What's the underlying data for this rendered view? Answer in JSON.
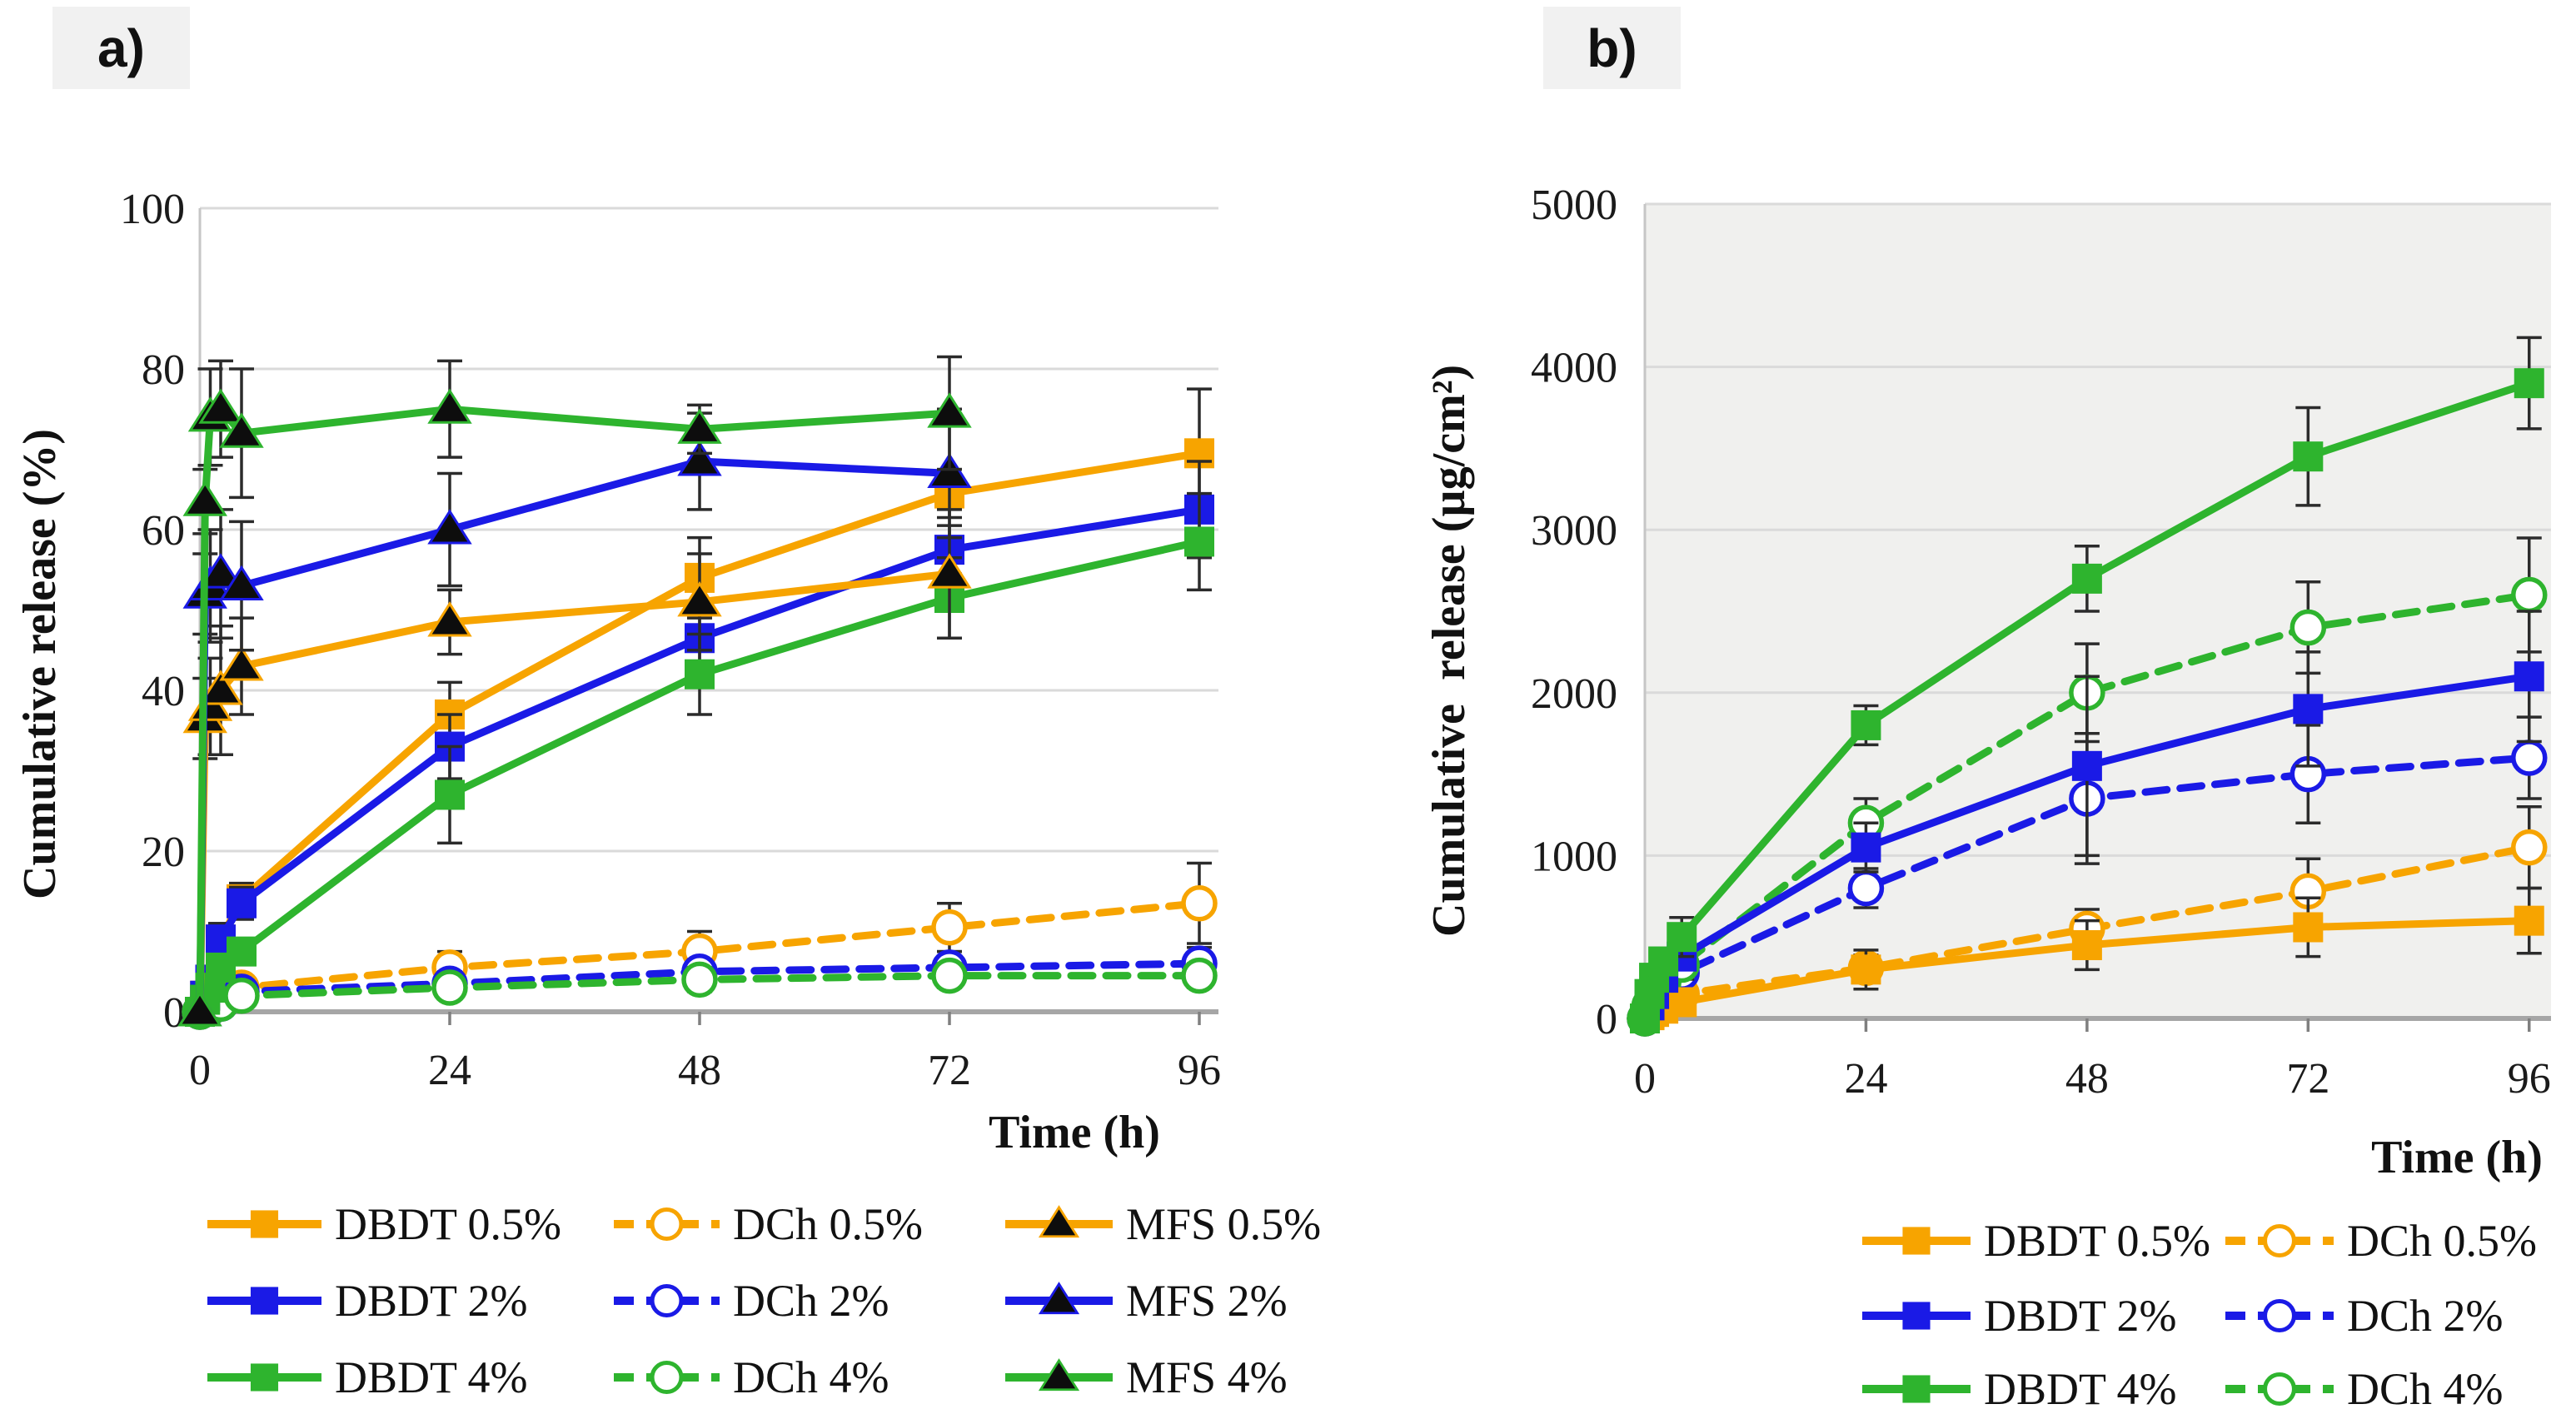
{
  "figure": {
    "panel_a_label": "a)",
    "panel_b_label": "b)"
  },
  "colors": {
    "orange": "#F7A400",
    "blue": "#1A1AE6",
    "green": "#2EB42E",
    "black_marker": "#0D0D0D",
    "grid": "#DADADA",
    "axis_line": "#A6A6A6",
    "minor_axis": "#C6C6C6",
    "error_bar": "#2B2B2B",
    "panel_label_bg": "#F1F1F1",
    "plot_bg_b": "#F0F0EE",
    "text": "#1A1A1A"
  },
  "chart_data": [
    {
      "type": "line",
      "panel": "a",
      "title": "",
      "xlabel": "Time (h)",
      "ylabel": "Cumulative release (%)",
      "xlim": [
        0,
        98
      ],
      "ylim": [
        0,
        100
      ],
      "xticks": [
        0,
        24,
        48,
        72,
        96
      ],
      "yticks": [
        0,
        20,
        40,
        60,
        80,
        100
      ],
      "grid": true,
      "plot_bg": "#FFFFFF",
      "x": [
        0,
        0.5,
        1,
        2,
        4,
        24,
        48,
        72,
        96
      ],
      "series": [
        {
          "name": "DCh 0.5%",
          "color": "#F7A400",
          "line": "dashed",
          "marker": "circle-open",
          "values": [
            0,
            0.5,
            1,
            1.5,
            3,
            5.5,
            7.5,
            10.5,
            13.5
          ],
          "errors": [
            0,
            0.3,
            0.5,
            0.5,
            1,
            2,
            2.5,
            3,
            5
          ]
        },
        {
          "name": "DCh 2%",
          "color": "#1A1AE6",
          "line": "dashed",
          "marker": "circle-open",
          "values": [
            0,
            0.3,
            0.5,
            1,
            2.5,
            3.5,
            5,
            5.5,
            6
          ],
          "errors": [
            0,
            0.3,
            0.3,
            0.5,
            1,
            1.5,
            1.5,
            2,
            2
          ]
        },
        {
          "name": "DCh 4%",
          "color": "#2EB42E",
          "line": "dashed",
          "marker": "circle-open",
          "values": [
            0,
            0.3,
            0.5,
            1,
            2,
            3,
            4,
            4.5,
            4.5
          ],
          "errors": [
            0,
            0.3,
            0.3,
            0.5,
            1,
            1,
            1.5,
            1.5,
            1.5
          ]
        },
        {
          "name": "DBDT 0.5%",
          "color": "#F7A400",
          "line": "solid",
          "marker": "square",
          "values": [
            0,
            2,
            4,
            9,
            14,
            37,
            54,
            64.5,
            69.5
          ],
          "errors": [
            0,
            1,
            1,
            2,
            2,
            4,
            5,
            3,
            8
          ]
        },
        {
          "name": "DBDT 2%",
          "color": "#1A1AE6",
          "line": "solid",
          "marker": "square",
          "values": [
            0,
            2,
            4,
            9,
            13.5,
            33,
            46.5,
            57.5,
            62.5
          ],
          "errors": [
            0,
            1,
            1,
            2,
            2,
            4,
            4,
            3,
            6
          ]
        },
        {
          "name": "DBDT 4%",
          "color": "#2EB42E",
          "line": "solid",
          "marker": "square",
          "values": [
            0,
            1.5,
            3,
            5.5,
            7.5,
            27,
            42,
            51.5,
            58.5
          ],
          "errors": [
            0,
            0.5,
            1,
            1,
            1.5,
            6,
            5,
            5,
            6
          ]
        },
        {
          "name": "MFS 0.5%",
          "color": "#F7A400",
          "line": "solid",
          "marker": "triangle-black",
          "values": [
            0,
            36.5,
            38,
            40,
            43,
            48.5,
            51,
            54.5,
            null
          ],
          "errors": [
            0,
            5,
            6,
            8,
            6,
            4,
            6,
            8,
            0
          ]
        },
        {
          "name": "MFS 2%",
          "color": "#1A1AE6",
          "line": "solid",
          "marker": "triangle-black",
          "values": [
            0,
            52,
            53,
            54.5,
            53,
            60,
            68.5,
            67,
            null
          ],
          "errors": [
            0,
            5,
            7,
            8,
            8,
            7,
            6,
            8,
            0
          ]
        },
        {
          "name": "MFS 4%",
          "color": "#2EB42E",
          "line": "solid",
          "marker": "triangle-black",
          "values": [
            0,
            63.5,
            74,
            75,
            72,
            75,
            72.5,
            74.5,
            null
          ],
          "errors": [
            0,
            4,
            6,
            6,
            8,
            6,
            3,
            7,
            0
          ]
        }
      ],
      "legend": {
        "position": "below",
        "columns": [
          [
            "DBDT 0.5%",
            "DBDT 2%",
            "DBDT 4%"
          ],
          [
            "DCh 0.5%",
            "DCh 2%",
            "DCh 4%"
          ],
          [
            "MFS 0.5%",
            "MFS 2%",
            "MFS 4%"
          ]
        ]
      }
    },
    {
      "type": "line",
      "panel": "b",
      "title": "",
      "xlabel": "Time (h)",
      "ylabel": "Cumulative  release (µg/cm²)",
      "xlim": [
        0,
        98
      ],
      "ylim": [
        0,
        5000
      ],
      "xticks": [
        0,
        24,
        48,
        72,
        96
      ],
      "yticks": [
        0,
        1000,
        2000,
        3000,
        4000,
        5000
      ],
      "grid": true,
      "plot_bg": "#F0F0EE",
      "x": [
        0,
        0.5,
        1,
        2,
        4,
        24,
        48,
        72,
        96
      ],
      "series": [
        {
          "name": "DCh 0.5%",
          "color": "#F7A400",
          "line": "dashed",
          "marker": "circle-open",
          "values": [
            0,
            30,
            60,
            120,
            150,
            310,
            550,
            780,
            1050
          ],
          "errors": [
            0,
            10,
            20,
            40,
            50,
            80,
            120,
            200,
            250
          ]
        },
        {
          "name": "DCh 2%",
          "color": "#1A1AE6",
          "line": "dashed",
          "marker": "circle-open",
          "values": [
            0,
            60,
            120,
            180,
            280,
            800,
            1350,
            1500,
            1600
          ],
          "errors": [
            0,
            30,
            40,
            50,
            70,
            120,
            400,
            300,
            250
          ]
        },
        {
          "name": "DCh 4%",
          "color": "#2EB42E",
          "line": "dashed",
          "marker": "circle-open",
          "values": [
            0,
            80,
            150,
            220,
            330,
            1200,
            2000,
            2400,
            2600
          ],
          "errors": [
            0,
            40,
            50,
            60,
            90,
            150,
            300,
            280,
            350
          ]
        },
        {
          "name": "DBDT 0.5%",
          "color": "#F7A400",
          "line": "solid",
          "marker": "square",
          "values": [
            0,
            20,
            40,
            60,
            100,
            300,
            450,
            560,
            600
          ],
          "errors": [
            0,
            10,
            20,
            30,
            40,
            120,
            150,
            180,
            200
          ]
        },
        {
          "name": "DBDT 2%",
          "color": "#1A1AE6",
          "line": "solid",
          "marker": "square",
          "values": [
            0,
            80,
            150,
            250,
            380,
            1050,
            1550,
            1900,
            2100
          ],
          "errors": [
            0,
            40,
            50,
            60,
            80,
            150,
            550,
            350,
            400
          ]
        },
        {
          "name": "DBDT 4%",
          "color": "#2EB42E",
          "line": "solid",
          "marker": "square",
          "values": [
            0,
            150,
            250,
            350,
            500,
            1800,
            2700,
            3450,
            3900
          ],
          "errors": [
            0,
            50,
            60,
            80,
            120,
            120,
            200,
            300,
            280
          ]
        }
      ],
      "legend": {
        "position": "below",
        "columns": [
          [
            "DBDT 0.5%",
            "DBDT 2%",
            "DBDT 4%"
          ],
          [
            "DCh 0.5%",
            "DCh 2%",
            "DCh 4%"
          ]
        ]
      }
    }
  ]
}
